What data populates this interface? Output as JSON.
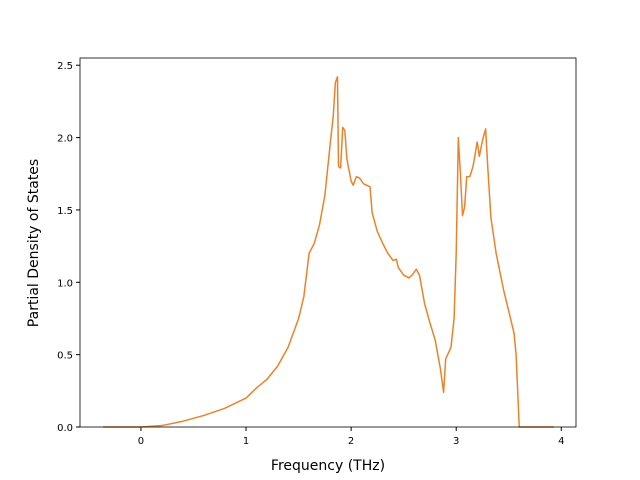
{
  "chart_data": {
    "type": "line",
    "x_label": "Frequency (THz)",
    "y_label": "Partial Density of States",
    "x": [
      -0.36,
      0,
      0.2,
      0.4,
      0.6,
      0.8,
      1.0,
      1.1,
      1.2,
      1.3,
      1.4,
      1.5,
      1.55,
      1.6,
      1.65,
      1.7,
      1.75,
      1.8,
      1.83,
      1.85,
      1.87,
      1.88,
      1.9,
      1.92,
      1.94,
      1.96,
      2.0,
      2.02,
      2.05,
      2.08,
      2.12,
      2.18,
      2.2,
      2.25,
      2.3,
      2.35,
      2.4,
      2.43,
      2.45,
      2.5,
      2.55,
      2.58,
      2.62,
      2.65,
      2.7,
      2.75,
      2.8,
      2.85,
      2.88,
      2.9,
      2.95,
      2.98,
      3.0,
      3.02,
      3.04,
      3.06,
      3.08,
      3.1,
      3.13,
      3.16,
      3.2,
      3.22,
      3.25,
      3.28,
      3.3,
      3.33,
      3.38,
      3.45,
      3.5,
      3.55,
      3.57,
      3.6,
      3.93
    ],
    "series": [
      {
        "color": "#e8832c",
        "values": [
          0,
          0,
          0.01,
          0.04,
          0.08,
          0.13,
          0.2,
          0.27,
          0.33,
          0.42,
          0.55,
          0.75,
          0.9,
          1.2,
          1.27,
          1.4,
          1.6,
          1.95,
          2.15,
          2.38,
          2.42,
          1.8,
          1.79,
          2.07,
          2.05,
          1.85,
          1.7,
          1.67,
          1.73,
          1.72,
          1.68,
          1.66,
          1.48,
          1.35,
          1.27,
          1.2,
          1.15,
          1.16,
          1.1,
          1.05,
          1.03,
          1.05,
          1.09,
          1.05,
          0.85,
          0.72,
          0.6,
          0.4,
          0.24,
          0.47,
          0.55,
          0.75,
          1.2,
          2.0,
          1.75,
          1.46,
          1.52,
          1.73,
          1.73,
          1.8,
          1.97,
          1.87,
          1.98,
          2.06,
          1.8,
          1.45,
          1.2,
          0.95,
          0.8,
          0.65,
          0.5,
          0,
          0
        ]
      }
    ],
    "xlim": [
      -0.58,
      4.14
    ],
    "ylim": [
      0,
      2.55
    ],
    "xticks": [
      0,
      1,
      2,
      3,
      4
    ],
    "yticks": [
      {
        "value": 0,
        "label": "0.0"
      },
      0.5,
      {
        "value": 1,
        "label": "1.0"
      },
      1.5,
      {
        "value": 2,
        "label": "2.0"
      },
      2.5
    ]
  }
}
